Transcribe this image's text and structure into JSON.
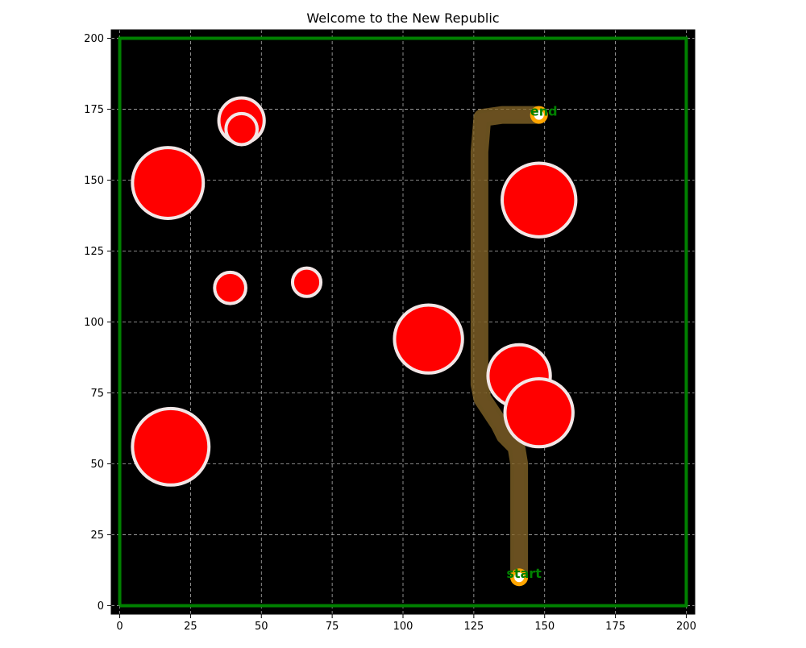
{
  "chart_data": {
    "type": "scatter",
    "title": "Welcome to the New Republic",
    "xlabel": "",
    "ylabel": "",
    "xlim": [
      -3,
      203
    ],
    "ylim": [
      -3,
      203
    ],
    "x_ticks": [
      0,
      25,
      50,
      75,
      100,
      125,
      150,
      175,
      200
    ],
    "y_ticks": [
      0,
      25,
      50,
      75,
      100,
      125,
      150,
      175,
      200
    ],
    "grid": true,
    "background_color": "#000000",
    "boundary": {
      "x": [
        0,
        200,
        200,
        0,
        0
      ],
      "y": [
        0,
        0,
        200,
        200,
        0
      ],
      "color": "#008000"
    },
    "obstacles": [
      {
        "cx": 43,
        "cy": 171,
        "r": 8
      },
      {
        "cx": 43,
        "cy": 168,
        "r": 5.5
      },
      {
        "cx": 17,
        "cy": 149,
        "r": 12.5
      },
      {
        "cx": 148,
        "cy": 143,
        "r": 13
      },
      {
        "cx": 39,
        "cy": 112,
        "r": 5.5
      },
      {
        "cx": 66,
        "cy": 114,
        "r": 5
      },
      {
        "cx": 109,
        "cy": 94,
        "r": 12
      },
      {
        "cx": 141,
        "cy": 81,
        "r": 11
      },
      {
        "cx": 148,
        "cy": 68,
        "r": 12
      },
      {
        "cx": 18,
        "cy": 56,
        "r": 13.5
      }
    ],
    "obstacle_fill": "#ff0000",
    "obstacle_edge": "#f2e6e6",
    "path": {
      "x": [
        141,
        141,
        141,
        141,
        140,
        138,
        136,
        135,
        134,
        132,
        130,
        128,
        127,
        127,
        127,
        127,
        128,
        135,
        148
      ],
      "y": [
        10,
        20,
        35,
        50,
        56,
        58,
        60,
        62,
        64,
        67,
        70,
        73,
        78,
        100,
        130,
        160,
        172,
        173,
        173
      ],
      "color": "#8a6a2a"
    },
    "start": {
      "x": 141,
      "y": 10,
      "label": "start"
    },
    "end": {
      "x": 148,
      "y": 173,
      "label": "end"
    },
    "marker_color": "#ffa500",
    "label_color": "#008000"
  }
}
